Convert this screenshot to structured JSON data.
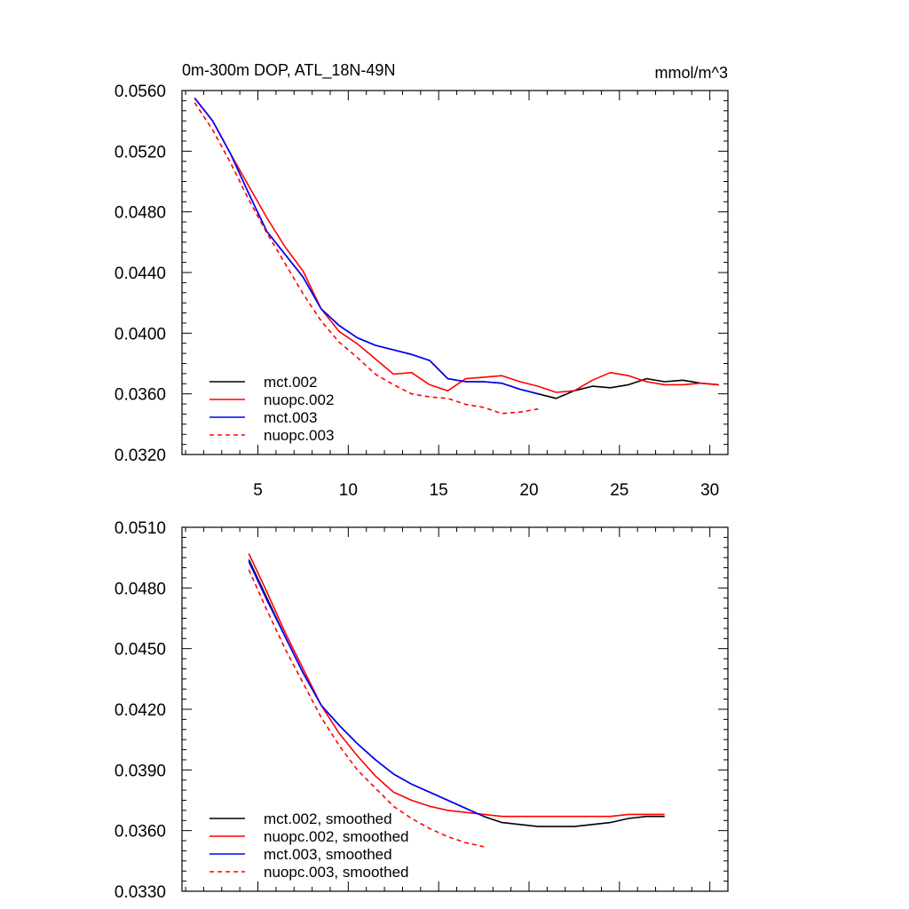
{
  "chart_data": [
    {
      "type": "line",
      "title": "0m-300m DOP, ATL_18N-49N",
      "units": "mmol/m^3",
      "ylim": [
        0.032,
        0.056
      ],
      "yticks": [
        "0.0560",
        "0.0520",
        "0.0480",
        "0.0440",
        "0.0400",
        "0.0360",
        "0.0320"
      ],
      "xlim": [
        0.8,
        31
      ],
      "xticks": [
        "5",
        "10",
        "15",
        "20",
        "25",
        "30"
      ],
      "legend_position": "bottom-left",
      "series": [
        {
          "name": "mct.002",
          "color": "#000000",
          "dash": "solid",
          "x": [
            1.5,
            2.5,
            3.5,
            4.5,
            5.5,
            6.5,
            7.5,
            8.5,
            9.5,
            10.5,
            11.5,
            12.5,
            13.5,
            14.5,
            15.5,
            16.5,
            17.5,
            18.5,
            19.5,
            20.5,
            21.5,
            22.5,
            23.5,
            24.5,
            25.5,
            26.5,
            27.5,
            28.5,
            29.5,
            30.5
          ],
          "y": [
            0.0555,
            0.054,
            0.0518,
            0.0492,
            0.0467,
            0.0452,
            0.0437,
            0.0416,
            0.0405,
            0.0397,
            0.0392,
            0.0389,
            0.0386,
            0.0382,
            0.037,
            0.0368,
            0.0368,
            0.0367,
            0.0363,
            0.036,
            0.0357,
            0.0362,
            0.0365,
            0.0364,
            0.0366,
            0.037,
            0.0368,
            0.0369,
            0.0367,
            0.0366
          ]
        },
        {
          "name": "nuopc.002",
          "color": "#ff0000",
          "dash": "solid",
          "x": [
            1.5,
            2.5,
            3.5,
            4.5,
            5.5,
            6.5,
            7.5,
            8.5,
            9.5,
            10.5,
            11.5,
            12.5,
            13.5,
            14.5,
            15.5,
            16.5,
            17.5,
            18.5,
            19.5,
            20.5,
            21.5,
            22.5,
            23.5,
            24.5,
            25.5,
            26.5,
            27.5,
            28.5,
            29.5,
            30.5
          ],
          "y": [
            0.0555,
            0.054,
            0.0518,
            0.0497,
            0.0476,
            0.0457,
            0.0441,
            0.0416,
            0.0401,
            0.0393,
            0.0383,
            0.0373,
            0.0374,
            0.0366,
            0.0362,
            0.037,
            0.0371,
            0.0372,
            0.0368,
            0.0365,
            0.0361,
            0.0362,
            0.0369,
            0.0374,
            0.0372,
            0.0368,
            0.0366,
            0.0366,
            0.0367,
            0.0366
          ]
        },
        {
          "name": "mct.003",
          "color": "#0000ff",
          "dash": "solid",
          "x": [
            1.5,
            2.5,
            3.5,
            4.5,
            5.5,
            6.5,
            7.5,
            8.5,
            9.5,
            10.5,
            11.5,
            12.5,
            13.5,
            14.5,
            15.5,
            16.5,
            17.5,
            18.5,
            19.5,
            20.5
          ],
          "y": [
            0.0555,
            0.054,
            0.0518,
            0.0492,
            0.0467,
            0.0452,
            0.0437,
            0.0416,
            0.0405,
            0.0397,
            0.0392,
            0.0389,
            0.0386,
            0.0382,
            0.037,
            0.0368,
            0.0368,
            0.0367,
            0.0363,
            0.036
          ]
        },
        {
          "name": "nuopc.003",
          "color": "#ff0000",
          "dash": "dashed",
          "x": [
            1.5,
            2.5,
            3.5,
            4.5,
            5.5,
            6.5,
            7.5,
            8.5,
            9.5,
            10.5,
            11.5,
            12.5,
            13.5,
            14.5,
            15.5,
            16.5,
            17.5,
            18.5,
            19.5,
            20.5
          ],
          "y": [
            0.0552,
            0.0534,
            0.0512,
            0.0488,
            0.0466,
            0.0446,
            0.0426,
            0.0408,
            0.0394,
            0.0384,
            0.0373,
            0.0366,
            0.036,
            0.0358,
            0.0357,
            0.0353,
            0.0351,
            0.0347,
            0.0348,
            0.035
          ]
        }
      ]
    },
    {
      "type": "line",
      "ylim": [
        0.033,
        0.051
      ],
      "yticks": [
        "0.0510",
        "0.0480",
        "0.0450",
        "0.0420",
        "0.0390",
        "0.0360",
        "0.0330"
      ],
      "xlim": [
        0.8,
        31
      ],
      "legend_position": "bottom-left",
      "series": [
        {
          "name": "mct.002, smoothed",
          "color": "#000000",
          "dash": "solid",
          "x": [
            4.5,
            5.5,
            6.5,
            7.5,
            8.5,
            9.5,
            10.5,
            11.5,
            12.5,
            13.5,
            14.5,
            15.5,
            16.5,
            17.5,
            18.5,
            19.5,
            20.5,
            21.5,
            22.5,
            23.5,
            24.5,
            25.5,
            26.5,
            27.5
          ],
          "y": [
            0.0494,
            0.0475,
            0.0456,
            0.0438,
            0.0422,
            0.0412,
            0.0403,
            0.0395,
            0.0388,
            0.0383,
            0.0379,
            0.0375,
            0.0371,
            0.0367,
            0.0364,
            0.0363,
            0.0362,
            0.0362,
            0.0362,
            0.0363,
            0.0364,
            0.0366,
            0.0367,
            0.0367
          ]
        },
        {
          "name": "nuopc.002, smoothed",
          "color": "#ff0000",
          "dash": "solid",
          "x": [
            4.5,
            5.5,
            6.5,
            7.5,
            8.5,
            9.5,
            10.5,
            11.5,
            12.5,
            13.5,
            14.5,
            15.5,
            16.5,
            17.5,
            18.5,
            19.5,
            20.5,
            21.5,
            22.5,
            23.5,
            24.5,
            25.5,
            26.5,
            27.5
          ],
          "y": [
            0.0497,
            0.0478,
            0.0458,
            0.044,
            0.0422,
            0.0408,
            0.0397,
            0.0387,
            0.0379,
            0.0375,
            0.0372,
            0.037,
            0.0369,
            0.0368,
            0.0367,
            0.0367,
            0.0367,
            0.0367,
            0.0367,
            0.0367,
            0.0367,
            0.0368,
            0.0368,
            0.0368
          ]
        },
        {
          "name": "mct.003, smoothed",
          "color": "#0000ff",
          "dash": "solid",
          "x": [
            4.5,
            5.5,
            6.5,
            7.5,
            8.5,
            9.5,
            10.5,
            11.5,
            12.5,
            13.5,
            14.5,
            15.5,
            16.5,
            17.5
          ],
          "y": [
            0.0493,
            0.0474,
            0.0456,
            0.0438,
            0.0422,
            0.0412,
            0.0403,
            0.0395,
            0.0388,
            0.0383,
            0.0379,
            0.0375,
            0.0371,
            0.0367
          ]
        },
        {
          "name": "nuopc.003, smoothed",
          "color": "#ff0000",
          "dash": "dashed",
          "x": [
            4.5,
            5.5,
            6.5,
            7.5,
            8.5,
            9.5,
            10.5,
            11.5,
            12.5,
            13.5,
            14.5,
            15.5,
            16.5,
            17.5
          ],
          "y": [
            0.0489,
            0.0469,
            0.045,
            0.0433,
            0.0416,
            0.0402,
            0.039,
            0.0381,
            0.0372,
            0.0366,
            0.0361,
            0.0357,
            0.0354,
            0.0352
          ]
        }
      ]
    }
  ]
}
